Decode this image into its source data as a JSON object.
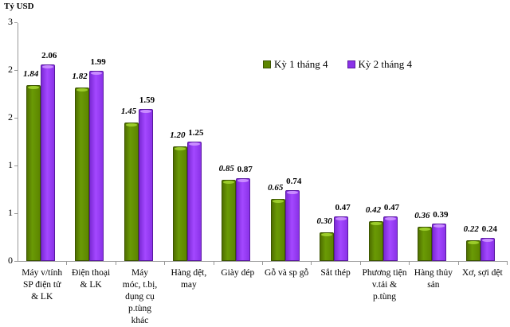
{
  "chart_data": {
    "type": "bar",
    "title": "",
    "ylabel": "Tỷ USD",
    "xlabel": "",
    "ylim": [
      0,
      2.5
    ],
    "ytick_labels": [
      "0",
      "1",
      "1",
      "2",
      "2",
      "3"
    ],
    "ytick_values": [
      0,
      0.5,
      1.0,
      1.5,
      2.0,
      2.5
    ],
    "grid": false,
    "legend_position": "top-right",
    "categories": [
      "Máy v/tính SP điện tử & LK",
      "Điện thoại & LK",
      "Máy móc, t.bị, dụng cụ p.tùng khác",
      "Hàng dệt, may",
      "Giày dép",
      "Gỗ và sp gỗ",
      "Sắt thép",
      "Phương tiện v.tải & p.tùng",
      "Hàng thủy sản",
      "Xơ, sợi dệt"
    ],
    "category_lines": [
      [
        "Máy v/tính",
        "SP điện tử",
        "& LK"
      ],
      [
        "Điện thoại",
        "& LK"
      ],
      [
        "Máy",
        "móc, t.bị,",
        "dụng cụ",
        "p.tùng",
        "khác"
      ],
      [
        "Hàng dệt,",
        "may"
      ],
      [
        "Giày dép"
      ],
      [
        "Gỗ và sp gỗ"
      ],
      [
        "Sắt thép"
      ],
      [
        "Phương tiện",
        "v.tải &",
        "p.tùng"
      ],
      [
        "Hàng thủy",
        "sản"
      ],
      [
        "Xơ, sợi dệt"
      ]
    ],
    "series": [
      {
        "name": "Kỳ 1 tháng 4",
        "color": "#5d8600",
        "values": [
          1.84,
          1.82,
          1.45,
          1.2,
          0.85,
          0.65,
          0.3,
          0.42,
          0.36,
          0.22
        ]
      },
      {
        "name": "Kỳ 2 tháng 4",
        "color": "#8a32e8",
        "values": [
          2.06,
          1.99,
          1.59,
          1.25,
          0.87,
          0.74,
          0.47,
          0.47,
          0.39,
          0.24
        ]
      }
    ]
  }
}
